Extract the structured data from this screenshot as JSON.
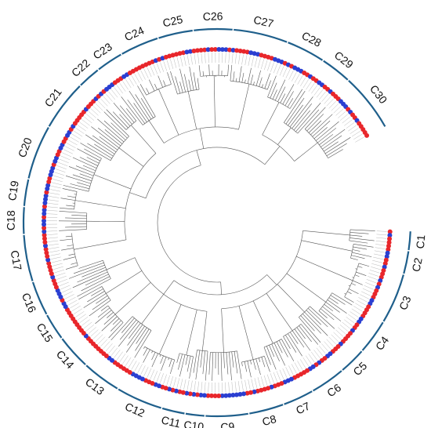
{
  "figure": {
    "clades": [
      "C1",
      "C2",
      "C3",
      "C4",
      "C5",
      "C6",
      "C7",
      "C8",
      "C9",
      "C10",
      "C11",
      "C12",
      "C13",
      "C14",
      "C15",
      "C16",
      "C17",
      "C18",
      "C19",
      "C20",
      "C21",
      "C22",
      "C23",
      "C24",
      "C25",
      "C26",
      "C27",
      "C28",
      "C29",
      "C30"
    ],
    "clade_sizes": [
      5,
      6,
      13,
      9,
      7,
      9,
      8,
      9,
      11,
      5,
      6,
      12,
      10,
      9,
      7,
      9,
      12,
      7,
      7,
      14,
      13,
      6,
      7,
      10,
      9,
      10,
      14,
      10,
      8,
      15
    ],
    "colors": {
      "arc": "#1f5f8b",
      "red_dot": "#e8262b",
      "blue_dot": "#2b3fd1",
      "branch": "#555555"
    }
  }
}
